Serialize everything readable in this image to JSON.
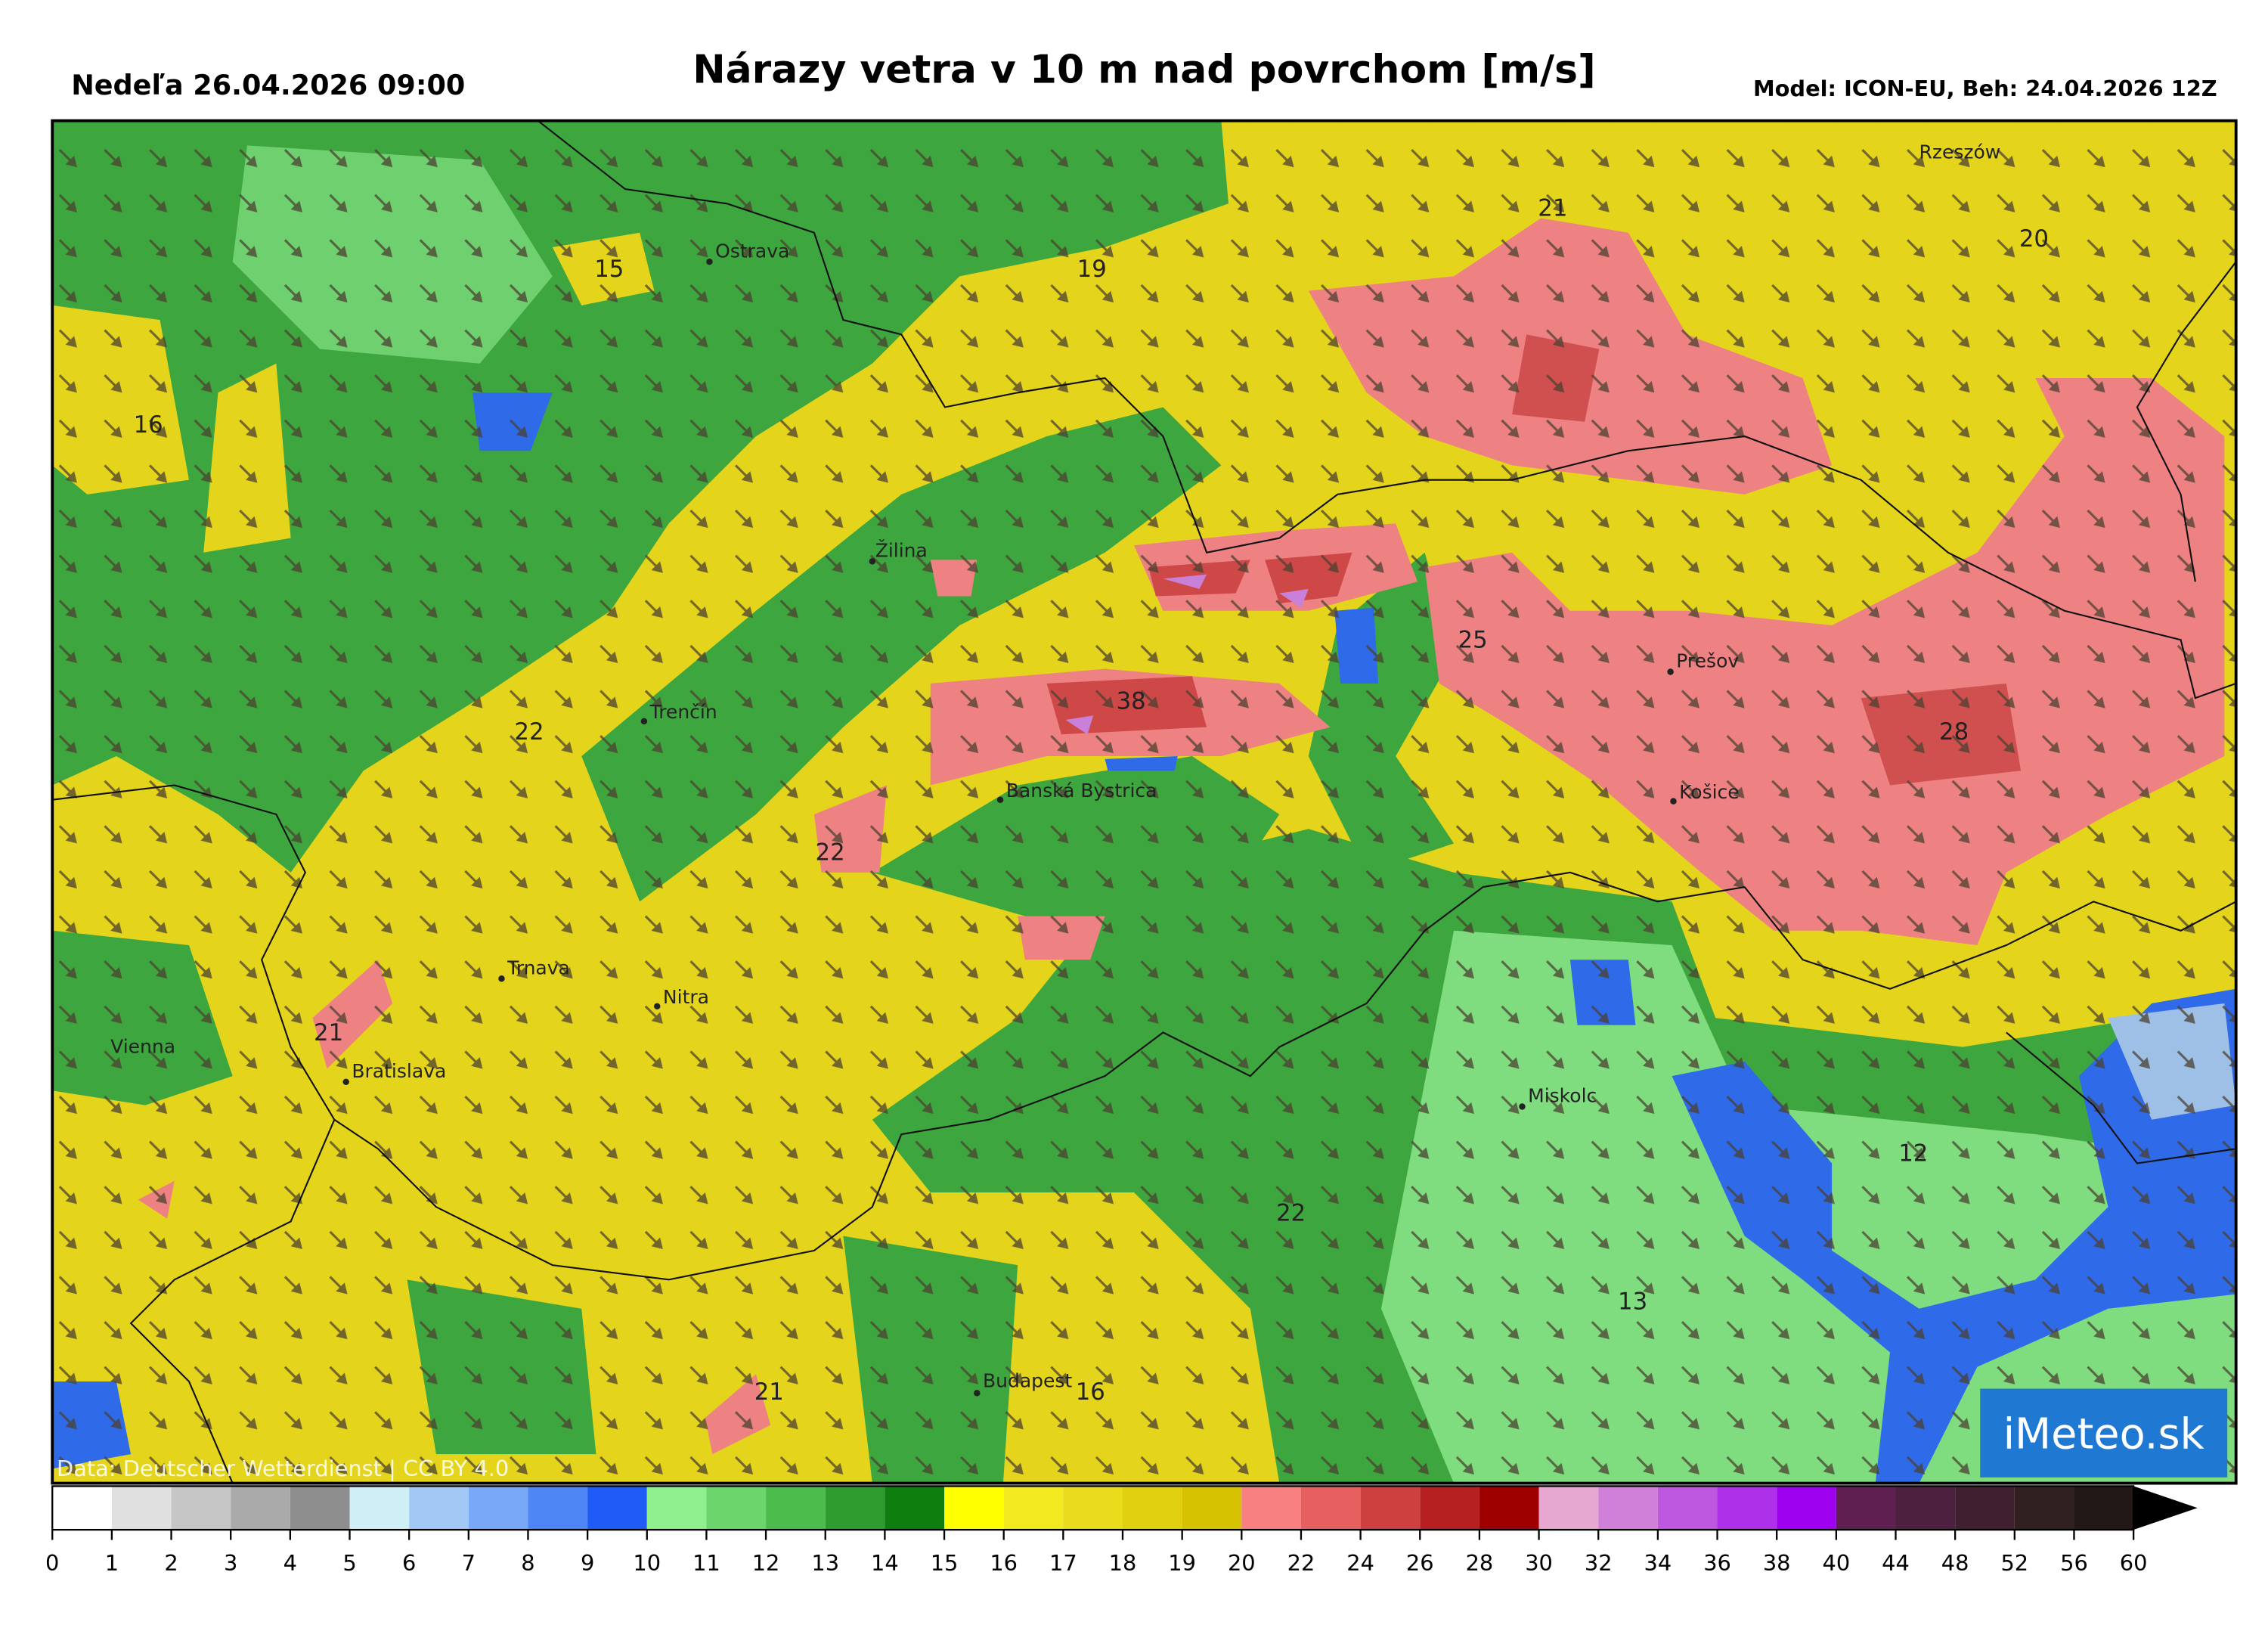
{
  "header": {
    "left": "Nedeľa 26.04.2026 09:00",
    "title": "Nárazy vetra v 10 m nad povrchom [m/s]",
    "right": "Model: ICON-EU, Beh: 24.04.2026 12Z"
  },
  "cities": [
    "Ostrava",
    "Žilina",
    "Trenčín",
    "Banská Bystrica",
    "Trnava",
    "Nitra",
    "Bratislava",
    "Vienna",
    "Rzeszów",
    "Prešov",
    "Košice",
    "Miskolc",
    "Budapest"
  ],
  "values": [
    "15",
    "19",
    "21",
    "20",
    "16",
    "22",
    "38",
    "25",
    "28",
    "22",
    "21",
    "12",
    "22",
    "13",
    "21",
    "16"
  ],
  "credit": "Data: Deutscher Wetterdienst | CC BY 4.0",
  "logo": "iMeteo.sk",
  "legend": {
    "ticks": [
      0,
      1,
      2,
      3,
      4,
      5,
      6,
      7,
      8,
      9,
      10,
      11,
      12,
      13,
      14,
      15,
      16,
      17,
      18,
      19,
      20,
      22,
      24,
      26,
      28,
      30,
      32,
      34,
      36,
      38,
      40,
      44,
      48,
      52,
      56,
      60
    ],
    "colors": [
      "#ffffff",
      "#e0e0e0",
      "#c6c6c6",
      "#aaaaaa",
      "#8e8e8e",
      "#d0eef6",
      "#a2c8f6",
      "#78a8f6",
      "#4f86f6",
      "#1f5cf6",
      "#90f090",
      "#6cd66c",
      "#4cbc4c",
      "#2e9c2e",
      "#0e7e0e",
      "#ffff00",
      "#f2ea1e",
      "#e8dc1c",
      "#e0d010",
      "#d6c200",
      "#f88080",
      "#e66060",
      "#ce4040",
      "#b62020",
      "#9e0000",
      "#e6a8d0",
      "#d080d8",
      "#be58e0",
      "#ae30e8",
      "#9e00f0",
      "#5e2050",
      "#4e2040",
      "#402030",
      "#302020",
      "#221818",
      "#000000"
    ]
  }
}
